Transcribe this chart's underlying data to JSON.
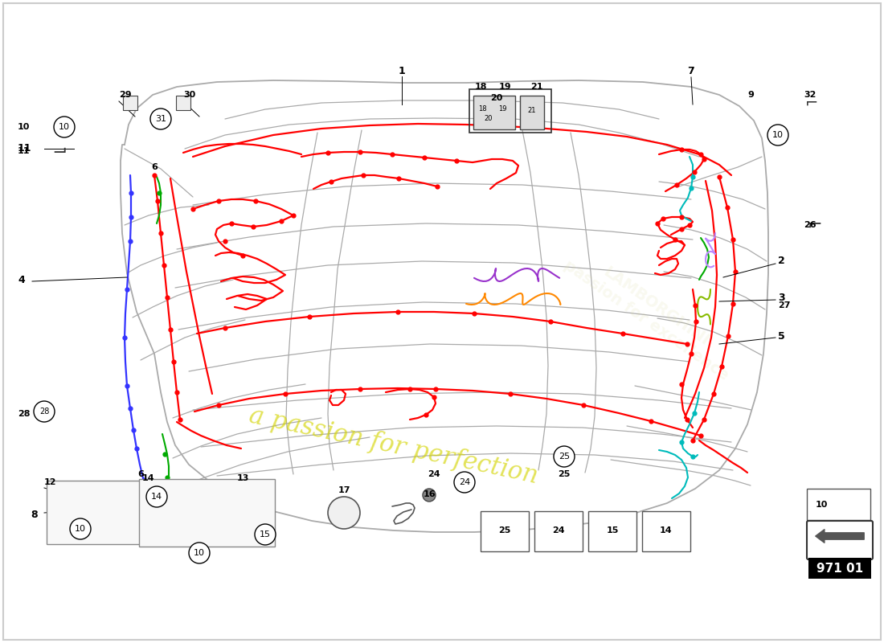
{
  "page_code": "971 01",
  "bg": "#ffffff",
  "watermark": "a passion for perfection",
  "wm_color": "#d4d400",
  "panel_color": "#aaaaaa",
  "red": "#ff0000",
  "blue": "#3333ff",
  "purple": "#9933cc",
  "orange": "#ff8800",
  "cyan": "#00bbbb",
  "light_cyan": "#44dddd",
  "green": "#00aa00",
  "yellow_green": "#88bb00",
  "lt_purple": "#bb88ff",
  "pink": "#ff88cc",
  "dark_gray": "#444444",
  "label_fs": 9,
  "small_fs": 8
}
